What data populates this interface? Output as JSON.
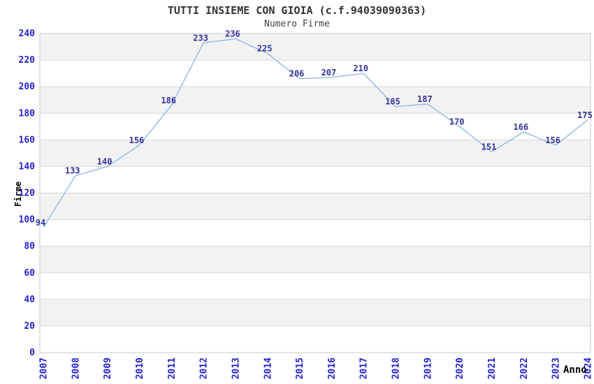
{
  "chart_data": {
    "type": "line",
    "title": "TUTTI INSIEME CON GIOIA (c.f.94039090363)",
    "subtitle": "Numero Firme",
    "xlabel": "Anno",
    "ylabel": "Firme",
    "categories": [
      "2007",
      "2008",
      "2009",
      "2010",
      "2011",
      "2012",
      "2013",
      "2014",
      "2015",
      "2016",
      "2017",
      "2018",
      "2019",
      "2020",
      "2021",
      "2022",
      "2023",
      "2024"
    ],
    "values": [
      94,
      133,
      140,
      156,
      186,
      233,
      236,
      225,
      206,
      207,
      210,
      185,
      187,
      170,
      151,
      166,
      156,
      175
    ],
    "ylim": [
      0,
      240
    ],
    "ytick_step": 20,
    "xtick_rotation": 90,
    "grid": true,
    "legend": "none",
    "alternating_bands": true,
    "colors": {
      "line": "#8ab5e8",
      "tick_label": "#2222cc",
      "data_label": "#333399",
      "band": "#f2f2f2",
      "grid": "#d6d6d6",
      "border": "#c9c9c9",
      "title": "#333333",
      "subtitle": "#444444",
      "axis_title": "#000000",
      "background": "#ffffff"
    }
  }
}
